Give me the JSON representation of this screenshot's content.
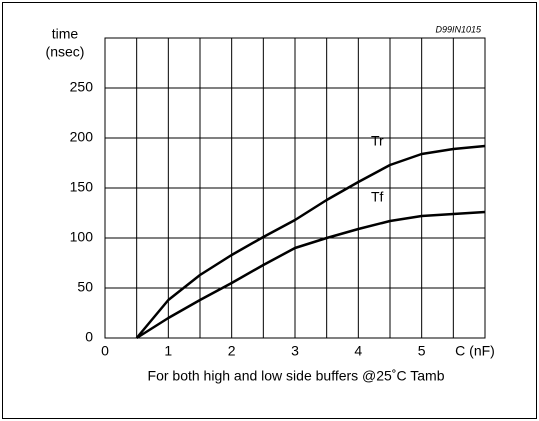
{
  "chart_data": {
    "type": "line",
    "ylabel": [
      "time",
      "(nsec)"
    ],
    "xlabel": "C (nF)",
    "annotation": "D99IN1015",
    "caption": "For both high and low side buffers @25˚C Tamb",
    "x": [
      0.5,
      1,
      1.5,
      2,
      2.5,
      3,
      3.5,
      4,
      4.5,
      5,
      5.5,
      6
    ],
    "series": [
      {
        "name": "Tr",
        "color": "#000000",
        "values": [
          0,
          38,
          63,
          83,
          101,
          118,
          138,
          156,
          173,
          184,
          189,
          192
        ]
      },
      {
        "name": "Tf",
        "color": "#000000",
        "values": [
          0,
          20,
          38,
          55,
          73,
          90,
          100,
          109,
          117,
          122,
          124,
          126
        ]
      }
    ],
    "xlim": [
      0,
      6
    ],
    "ylim": [
      0,
      300
    ],
    "xticks": [
      0,
      1,
      2,
      3,
      4,
      5
    ],
    "minor_xticks": [
      0.5,
      1.5,
      2.5,
      3.5,
      4.5,
      5.5
    ],
    "yticks": [
      0,
      50,
      100,
      150,
      200,
      250
    ],
    "grid": true
  }
}
